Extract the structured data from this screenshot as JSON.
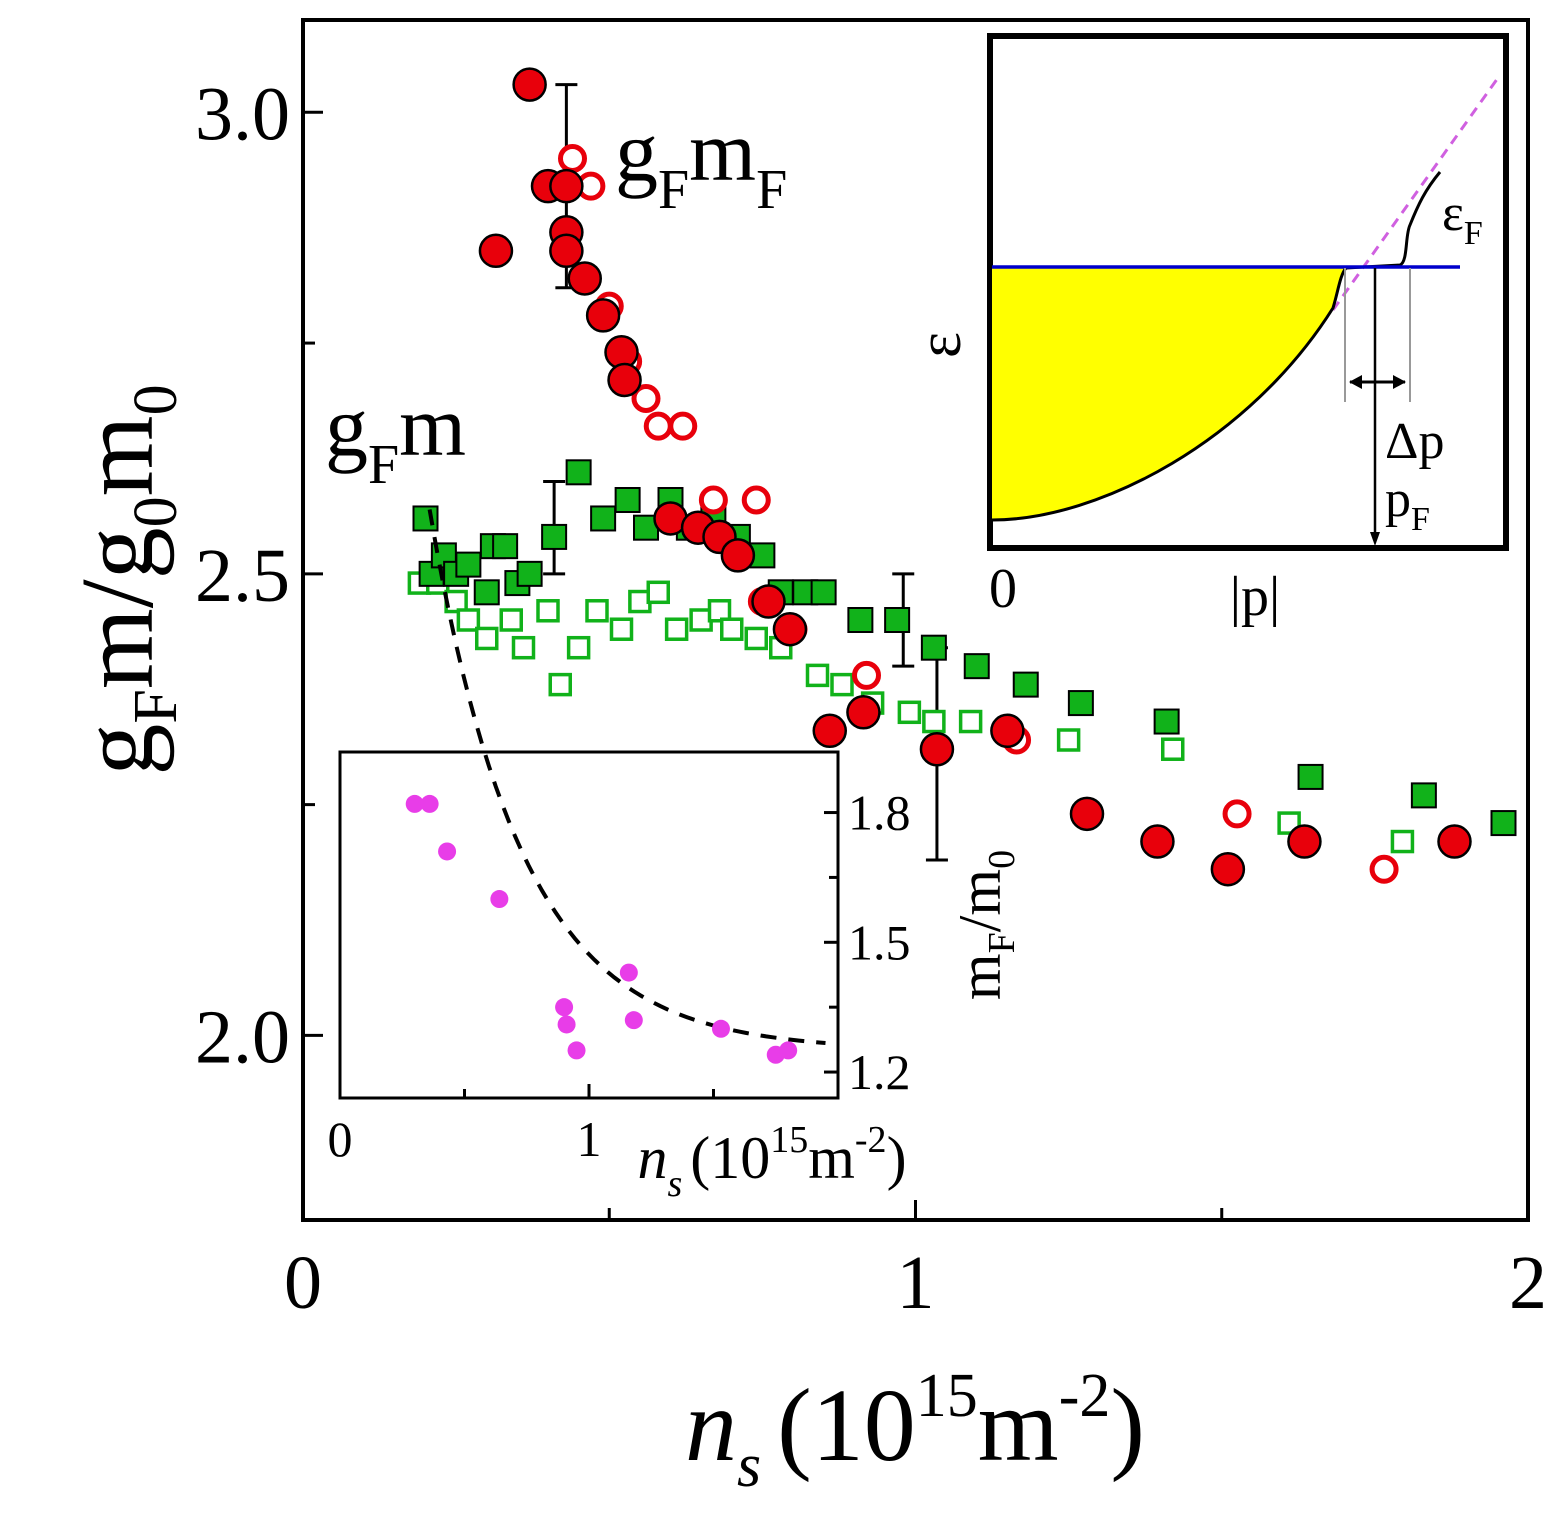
{
  "chart_data": [
    {
      "id": "main",
      "type": "scatter",
      "xlabel": {
        "var": "n",
        "sub": "s",
        "unit_pre": "(10",
        "unit_sup": "15",
        "unit_mid": "m",
        "unit_sup2": "-2",
        "unit_post": ")"
      },
      "ylabel": {
        "p1": "g",
        "s1": "F",
        "p2": "m/g",
        "s2": "0",
        "p3": "m",
        "s3": "0"
      },
      "xlim": [
        0,
        2
      ],
      "ylim": [
        1.8,
        3.1
      ],
      "xticks": [
        0,
        1,
        2
      ],
      "xtick_labels": [
        "0",
        "1",
        "2"
      ],
      "xticks_minor": [
        0.5,
        1.5
      ],
      "yticks": [
        2.0,
        2.5,
        3.0
      ],
      "ytick_labels": [
        "2.0",
        "2.5",
        "3.0"
      ],
      "yticks_minor": [
        2.25,
        2.75
      ],
      "annotations": [
        {
          "id": "label-gFmF",
          "main": "g",
          "sub": "F",
          "main2": "m",
          "sub2": "F"
        },
        {
          "id": "label-gFm",
          "main": "g",
          "sub": "F",
          "main2": "m",
          "sub2": ""
        }
      ],
      "series": [
        {
          "name": "gF mF (filled)",
          "marker": "circle",
          "filled": true,
          "color": "#e8000b",
          "points": [
            [
              0.37,
              3.03
            ],
            [
              0.315,
              2.85
            ],
            [
              0.4,
              2.92
            ],
            [
              0.43,
              2.92
            ],
            [
              0.43,
              2.87
            ],
            [
              0.43,
              2.85
            ],
            [
              0.46,
              2.82
            ],
            [
              0.49,
              2.78
            ],
            [
              0.52,
              2.74
            ],
            [
              0.525,
              2.71
            ],
            [
              0.6,
              2.56
            ],
            [
              0.645,
              2.55
            ],
            [
              0.68,
              2.54
            ],
            [
              0.71,
              2.52
            ],
            [
              0.76,
              2.47
            ],
            [
              0.795,
              2.44
            ],
            [
              0.86,
              2.33
            ],
            [
              0.915,
              2.35
            ],
            [
              1.035,
              2.31
            ],
            [
              1.15,
              2.33
            ],
            [
              1.28,
              2.24
            ],
            [
              1.395,
              2.21
            ],
            [
              1.51,
              2.18
            ],
            [
              1.635,
              2.21
            ],
            [
              1.88,
              2.21
            ]
          ]
        },
        {
          "name": "gF mF (open)",
          "marker": "circle",
          "filled": false,
          "color": "#e8000b",
          "points": [
            [
              0.44,
              2.95
            ],
            [
              0.47,
              2.92
            ],
            [
              0.5,
              2.79
            ],
            [
              0.53,
              2.73
            ],
            [
              0.56,
              2.69
            ],
            [
              0.58,
              2.66
            ],
            [
              0.62,
              2.66
            ],
            [
              0.67,
              2.58
            ],
            [
              0.74,
              2.58
            ],
            [
              0.75,
              2.47
            ],
            [
              0.8,
              2.44
            ],
            [
              0.92,
              2.39
            ],
            [
              1.165,
              2.32
            ],
            [
              1.525,
              2.24
            ],
            [
              1.765,
              2.18
            ]
          ]
        },
        {
          "name": "gF m (filled)",
          "marker": "square",
          "filled": true,
          "color": "#11b21a",
          "points": [
            [
              0.2,
              2.56
            ],
            [
              0.21,
              2.5
            ],
            [
              0.23,
              2.52
            ],
            [
              0.25,
              2.5
            ],
            [
              0.27,
              2.51
            ],
            [
              0.3,
              2.48
            ],
            [
              0.31,
              2.53
            ],
            [
              0.33,
              2.53
            ],
            [
              0.35,
              2.49
            ],
            [
              0.37,
              2.5
            ],
            [
              0.41,
              2.54
            ],
            [
              0.45,
              2.61
            ],
            [
              0.49,
              2.56
            ],
            [
              0.53,
              2.58
            ],
            [
              0.56,
              2.55
            ],
            [
              0.6,
              2.58
            ],
            [
              0.63,
              2.55
            ],
            [
              0.67,
              2.56
            ],
            [
              0.71,
              2.54
            ],
            [
              0.75,
              2.52
            ],
            [
              0.78,
              2.48
            ],
            [
              0.82,
              2.48
            ],
            [
              0.85,
              2.48
            ],
            [
              0.91,
              2.45
            ],
            [
              0.97,
              2.45
            ],
            [
              1.03,
              2.42
            ],
            [
              1.1,
              2.4
            ],
            [
              1.18,
              2.38
            ],
            [
              1.27,
              2.36
            ],
            [
              1.41,
              2.34
            ],
            [
              1.645,
              2.28
            ],
            [
              1.83,
              2.26
            ],
            [
              1.96,
              2.23
            ]
          ]
        },
        {
          "name": "gF m (open)",
          "marker": "square",
          "filled": false,
          "color": "#11b21a",
          "points": [
            [
              0.19,
              2.49
            ],
            [
              0.22,
              2.49
            ],
            [
              0.25,
              2.47
            ],
            [
              0.27,
              2.45
            ],
            [
              0.3,
              2.43
            ],
            [
              0.34,
              2.45
            ],
            [
              0.36,
              2.42
            ],
            [
              0.4,
              2.46
            ],
            [
              0.42,
              2.38
            ],
            [
              0.45,
              2.42
            ],
            [
              0.48,
              2.46
            ],
            [
              0.52,
              2.44
            ],
            [
              0.55,
              2.47
            ],
            [
              0.58,
              2.48
            ],
            [
              0.61,
              2.44
            ],
            [
              0.65,
              2.45
            ],
            [
              0.68,
              2.46
            ],
            [
              0.7,
              2.44
            ],
            [
              0.74,
              2.43
            ],
            [
              0.78,
              2.42
            ],
            [
              0.84,
              2.39
            ],
            [
              0.88,
              2.38
            ],
            [
              0.93,
              2.36
            ],
            [
              0.99,
              2.35
            ],
            [
              1.03,
              2.34
            ],
            [
              1.09,
              2.34
            ],
            [
              1.25,
              2.32
            ],
            [
              1.42,
              2.31
            ],
            [
              1.61,
              2.23
            ],
            [
              1.795,
              2.21
            ],
            [
              1.88,
              2.21
            ]
          ]
        }
      ],
      "error_bars": [
        {
          "x": 0.43,
          "y": 2.87,
          "lo": 2.81,
          "hi": 3.03
        },
        {
          "x": 0.41,
          "y": 2.54,
          "lo": 2.5,
          "hi": 2.6
        },
        {
          "x": 0.98,
          "y": 2.45,
          "lo": 2.4,
          "hi": 2.5
        },
        {
          "x": 1.035,
          "y": 2.31,
          "lo": 2.19,
          "hi": 2.42
        }
      ]
    },
    {
      "id": "inset-effective-mass",
      "type": "scatter",
      "xlabel": {
        "var": "n",
        "sub": "s",
        "unit_pre": "(10",
        "unit_sup": "15",
        "unit_mid": "m",
        "unit_sup2": "-2",
        "unit_post": ")"
      },
      "ylabel": {
        "p1": "m",
        "s1": "F",
        "p2": "/m",
        "s2": "0"
      },
      "xlim": [
        0,
        2
      ],
      "ylim": [
        1.14,
        1.94
      ],
      "xticks": [
        0,
        1
      ],
      "xtick_labels": [
        "0",
        "1"
      ],
      "xticks_minor": [
        0.5,
        1.5
      ],
      "yticks": [
        1.2,
        1.5,
        1.8
      ],
      "ytick_labels": [
        "1.2",
        "1.5",
        "1.8"
      ],
      "yticks_minor": [
        1.35,
        1.65
      ],
      "series": [
        {
          "name": "mF/m0",
          "marker": "circle",
          "filled": true,
          "color": "#e83de8",
          "points": [
            [
              0.3,
              1.82
            ],
            [
              0.36,
              1.82
            ],
            [
              0.43,
              1.71
            ],
            [
              0.64,
              1.6
            ],
            [
              0.9,
              1.35
            ],
            [
              0.91,
              1.31
            ],
            [
              0.95,
              1.25
            ],
            [
              1.16,
              1.43
            ],
            [
              1.18,
              1.32
            ],
            [
              1.53,
              1.3
            ],
            [
              1.75,
              1.24
            ],
            [
              1.8,
              1.25
            ]
          ]
        },
        {
          "name": "fit",
          "line": "dashed",
          "color": "#000000",
          "fit": {
            "y_inf": 1.25,
            "a": 1.32,
            "x0": 0.34,
            "k": 2.7,
            "x_start": 0.36,
            "x_end": 1.95
          }
        }
      ]
    },
    {
      "id": "inset-dispersion",
      "type": "diagram",
      "xlabel": "|p|",
      "ylabel": "ε",
      "xtick_labels": [
        "0"
      ],
      "annotations": [
        {
          "id": "eps-F",
          "main": "ε",
          "sub": "F"
        },
        {
          "id": "delta-p",
          "main": "Δp"
        },
        {
          "id": "p-F",
          "main": "p",
          "sub": "F"
        }
      ],
      "colors": {
        "fill": "#ffff00",
        "fermi_level": "#0000cc",
        "parabola": "#d060e0",
        "curve": "#000000"
      }
    }
  ]
}
